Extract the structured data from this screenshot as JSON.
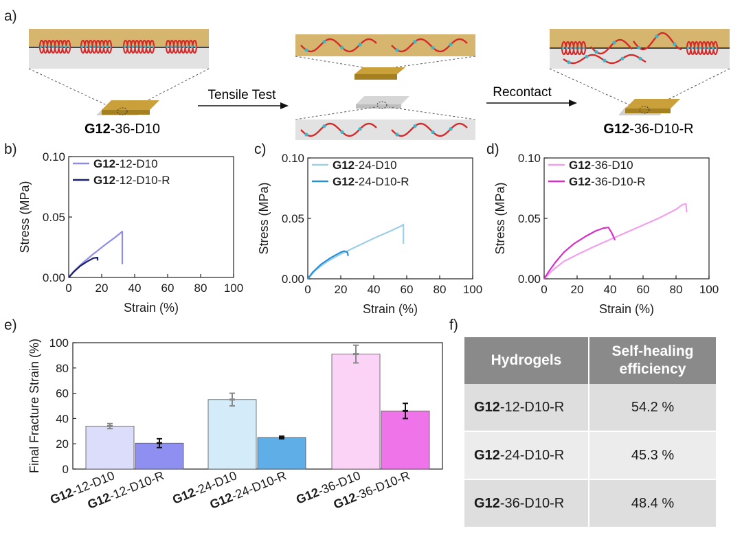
{
  "panel_labels": [
    "a)",
    "b)",
    "c)",
    "d)",
    "e)",
    "f)"
  ],
  "schematic": {
    "left_sample": {
      "bold": "G12",
      "rest": "-36-D10"
    },
    "right_sample": {
      "bold": "G12",
      "rest": "-36-D10-R"
    },
    "arrow1_label": "Tensile Test",
    "arrow2_label": "Recontact"
  },
  "colors": {
    "b_orig": "#8f8bea",
    "b_heal": "#1c1f6e",
    "c_orig": "#9dcfe8",
    "c_heal": "#2b8fd6",
    "d_orig": "#f2a0ee",
    "d_heal": "#d62fc8",
    "bar_b_orig": "#dcdcfb",
    "bar_b_heal": "#8f8ff2",
    "bar_c_orig": "#d4ecf9",
    "bar_c_heal": "#5faee8",
    "bar_d_orig": "#fad3f6",
    "bar_d_heal": "#ef74ea",
    "table_header": "#8a8a8a"
  },
  "chart_data": [
    {
      "panel": "b",
      "type": "line",
      "xlabel": "Strain (%)",
      "ylabel": "Stress (MPa)",
      "xlim": [
        0,
        100
      ],
      "ylim": [
        0,
        0.1
      ],
      "xticks": [
        "0",
        "20",
        "40",
        "60",
        "80",
        "100"
      ],
      "yticks": [
        "0.00",
        "0.05",
        "0.10"
      ],
      "legend_position": "top-left",
      "series": [
        {
          "name_bold": "G12",
          "name_rest": "-12-D10",
          "color": "#8f8bea",
          "x": [
            0,
            3,
            8,
            15,
            22,
            28,
            32.5,
            32.5
          ],
          "y": [
            0,
            0.005,
            0.0115,
            0.0195,
            0.027,
            0.033,
            0.038,
            0.011
          ]
        },
        {
          "name_bold": "G12",
          "name_rest": "-12-D10-R",
          "color": "#1c1f6e",
          "x": [
            0,
            3,
            7,
            11,
            15,
            17.5,
            17.5
          ],
          "y": [
            0,
            0.0045,
            0.0095,
            0.013,
            0.016,
            0.0165,
            0.014
          ]
        }
      ]
    },
    {
      "panel": "c",
      "type": "line",
      "xlabel": "Strain (%)",
      "ylabel": "Stress (MPa)",
      "xlim": [
        0,
        100
      ],
      "ylim": [
        0,
        0.1
      ],
      "xticks": [
        "0",
        "20",
        "40",
        "60",
        "80",
        "100"
      ],
      "yticks": [
        "0.00",
        "0.05",
        "0.10"
      ],
      "legend_position": "top-left",
      "series": [
        {
          "name_bold": "G12",
          "name_rest": "-24-D10",
          "color": "#9dcfe8",
          "x": [
            0,
            5,
            12,
            20,
            30,
            40,
            50,
            57,
            58,
            58
          ],
          "y": [
            0,
            0.0075,
            0.0145,
            0.0205,
            0.027,
            0.0335,
            0.0395,
            0.044,
            0.045,
            0.029
          ]
        },
        {
          "name_bold": "G12",
          "name_rest": "-24-D10-R",
          "color": "#2b8fd6",
          "x": [
            0,
            3,
            8,
            14,
            20,
            22,
            24,
            24.5
          ],
          "y": [
            0,
            0.0055,
            0.012,
            0.0175,
            0.022,
            0.023,
            0.022,
            0.019
          ]
        }
      ]
    },
    {
      "panel": "d",
      "type": "line",
      "xlabel": "Strain (%)",
      "ylabel": "Stress (MPa)",
      "xlim": [
        0,
        100
      ],
      "ylim": [
        0,
        0.1
      ],
      "xticks": [
        "0",
        "20",
        "40",
        "60",
        "80",
        "100"
      ],
      "yticks": [
        "0.00",
        "0.05",
        "0.10"
      ],
      "legend_position": "top-left",
      "series": [
        {
          "name_bold": "G12",
          "name_rest": "-36-D10",
          "color": "#f2a0ee",
          "x": [
            0,
            5,
            12,
            20,
            30,
            40,
            50,
            60,
            70,
            80,
            84,
            86,
            86.5
          ],
          "y": [
            0,
            0.007,
            0.0145,
            0.02,
            0.0265,
            0.0325,
            0.0385,
            0.0445,
            0.0505,
            0.0575,
            0.0615,
            0.062,
            0.055
          ]
        },
        {
          "name_bold": "G12",
          "name_rest": "-36-D10-R",
          "color": "#d62fc8",
          "x": [
            0,
            3,
            7,
            12,
            18,
            25,
            31,
            36,
            39,
            41,
            43
          ],
          "y": [
            0,
            0.0065,
            0.014,
            0.022,
            0.029,
            0.035,
            0.0395,
            0.042,
            0.0425,
            0.038,
            0.032
          ]
        }
      ]
    },
    {
      "panel": "e",
      "type": "bar",
      "ylabel": "Final Fracture Strain (%)",
      "ylim": [
        0,
        100
      ],
      "yticks": [
        "0",
        "20",
        "40",
        "60",
        "80",
        "100"
      ],
      "categories": [
        {
          "bold": "G12",
          "rest": "-12-D10"
        },
        {
          "bold": "G12",
          "rest": "-12-D10-R"
        },
        {
          "bold": "G12",
          "rest": "-24-D10"
        },
        {
          "bold": "G12",
          "rest": "-24-D10-R"
        },
        {
          "bold": "G12",
          "rest": "-36-D10"
        },
        {
          "bold": "G12",
          "rest": "-36-D10-R"
        }
      ],
      "values": [
        34,
        20.5,
        55,
        25,
        91,
        46
      ],
      "errors": [
        2,
        3.5,
        5,
        1,
        7,
        6
      ],
      "fill": [
        "#dcdcfb",
        "#8f8ff2",
        "#d4ecf9",
        "#5faee8",
        "#fad3f6",
        "#ef74ea"
      ],
      "err_color": [
        "#888888",
        "#111111",
        "#888888",
        "#111111",
        "#888888",
        "#111111"
      ]
    }
  ],
  "table": {
    "headers": [
      "Hydrogels",
      "Self-healing efficiency"
    ],
    "rows": [
      {
        "bold": "G12",
        "rest": "-12-D10-R",
        "value": "54.2 %"
      },
      {
        "bold": "G12",
        "rest": "-24-D10-R",
        "value": "45.3 %"
      },
      {
        "bold": "G12",
        "rest": "-36-D10-R",
        "value": "48.4 %"
      }
    ]
  }
}
